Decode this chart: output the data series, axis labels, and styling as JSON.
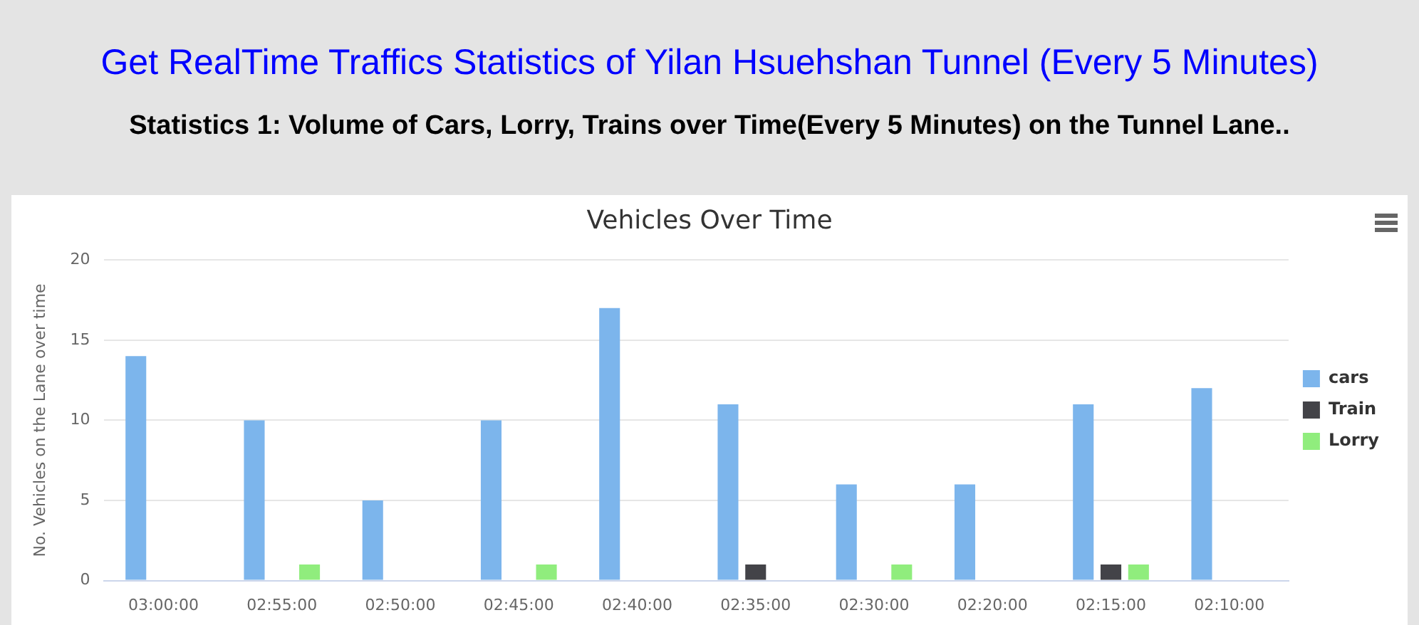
{
  "chart_data": {
    "type": "bar",
    "title": "Vehicles Over Time",
    "ylabel": "No. Vehicles on the Lane over time",
    "annotations": [
      "Get RealTime Traffics Statistics of Yilan Hsuehshan Tunnel (Every 5 Minutes)",
      "Statistics 1: Volume of Cars, Lorry, Trains over Time(Every 5 Minutes) on the Tunnel Lane.."
    ],
    "categories": [
      "03:00:00",
      "02:55:00",
      "02:50:00",
      "02:45:00",
      "02:40:00",
      "02:35:00",
      "02:30:00",
      "02:20:00",
      "02:15:00",
      "02:10:00"
    ],
    "series": [
      {
        "name": "cars",
        "color": "#7cb5ec",
        "values": [
          14,
          10,
          5,
          10,
          17,
          11,
          6,
          6,
          11,
          12
        ]
      },
      {
        "name": "Train",
        "color": "#434348",
        "values": [
          0,
          0,
          0,
          0,
          0,
          1,
          0,
          0,
          1,
          0
        ]
      },
      {
        "name": "Lorry",
        "color": "#90ed7d",
        "values": [
          0,
          1,
          0,
          1,
          0,
          0,
          1,
          0,
          1,
          0
        ]
      }
    ],
    "ylim": [
      0,
      20
    ],
    "yticks": [
      0,
      5,
      10,
      15,
      20
    ],
    "grid": "y",
    "legend": "right"
  }
}
